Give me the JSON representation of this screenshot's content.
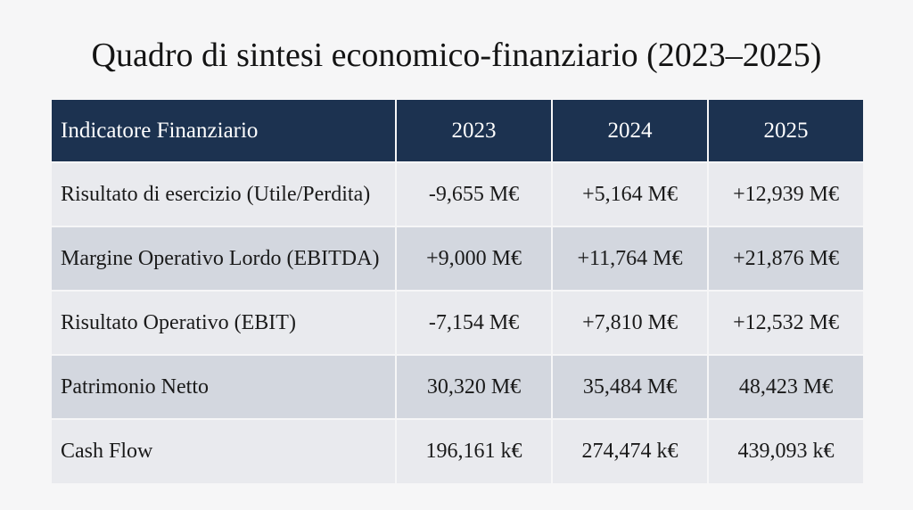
{
  "title": "Quadro di sintesi economico-finanziario (2023–2025)",
  "table": {
    "headers": [
      "Indicatore Finanziario",
      "2023",
      "2024",
      "2025"
    ],
    "rows": [
      {
        "label": "Risultato di esercizio (Utile/Perdita)",
        "values": [
          "-9,655 M€",
          "+5,164 M€",
          "+12,939 M€"
        ]
      },
      {
        "label": "Margine Operativo Lordo (EBITDA)",
        "values": [
          "+9,000 M€",
          "+11,764 M€",
          "+21,876 M€"
        ]
      },
      {
        "label": "Risultato Operativo (EBIT)",
        "values": [
          "-7,154 M€",
          "+7,810 M€",
          "+12,532 M€"
        ]
      },
      {
        "label": "Patrimonio Netto",
        "values": [
          "30,320 M€",
          "35,484 M€",
          "48,423 M€"
        ]
      },
      {
        "label": "Cash Flow",
        "values": [
          "196,161 k€",
          "274,474 k€",
          "439,093 k€"
        ]
      }
    ]
  },
  "colors": {
    "header_bg": "#1c3250",
    "row_light": "#e9eaee",
    "row_dark": "#d3d7df",
    "page_bg": "#f6f6f7"
  }
}
